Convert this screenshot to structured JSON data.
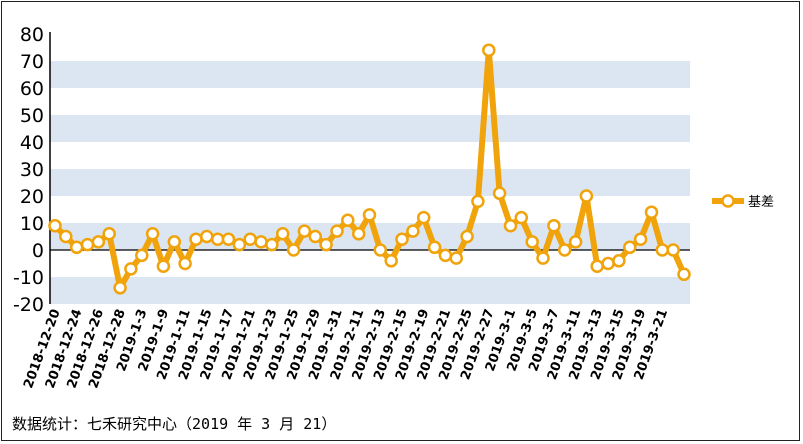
{
  "source_note": "数据统计：七禾研究中心（2019 年 3 月 21）",
  "colors": {
    "line": "#f0a30a",
    "marker_fill": "#ffffff",
    "band": "#dce6f2",
    "axis": "#000000"
  },
  "chart_data": {
    "type": "line",
    "title": "",
    "xlabel": "",
    "ylabel": "",
    "ylim": [
      -20,
      80
    ],
    "yticks": [
      80,
      70,
      60,
      50,
      40,
      30,
      20,
      10,
      0,
      -10,
      -20
    ],
    "grid": "alternating horizontal bands",
    "legend_position": "right",
    "x_tick_labels": [
      "2018-12-20",
      "2018-12-24",
      "2018-12-26",
      "2018-12-28",
      "2019-1-3",
      "2019-1-9",
      "2019-1-11",
      "2019-1-15",
      "2019-1-17",
      "2019-1-21",
      "2019-1-23",
      "2019-1-25",
      "2019-1-29",
      "2019-1-31",
      "2019-2-11",
      "2019-2-13",
      "2019-2-15",
      "2019-2-19",
      "2019-2-21",
      "2019-2-25",
      "2019-2-27",
      "2019-3-1",
      "2019-3-5",
      "2019-3-7",
      "2019-3-11",
      "2019-3-13",
      "2019-3-15",
      "2019-3-19",
      "2019-3-21"
    ],
    "series": [
      {
        "name": "基差",
        "values": [
          9,
          5,
          1,
          2,
          3,
          6,
          -14,
          -7,
          -2,
          6,
          -6,
          3,
          -5,
          4,
          5,
          4,
          4,
          2,
          4,
          3,
          2,
          6,
          0,
          7,
          5,
          2,
          7,
          11,
          6,
          13,
          0,
          -4,
          4,
          7,
          12,
          1,
          -2,
          -3,
          5,
          18,
          74,
          21,
          9,
          12,
          3,
          -3,
          9,
          0,
          3,
          20,
          -6,
          -5,
          -4,
          1,
          4,
          14,
          0,
          0,
          -9
        ]
      }
    ]
  }
}
